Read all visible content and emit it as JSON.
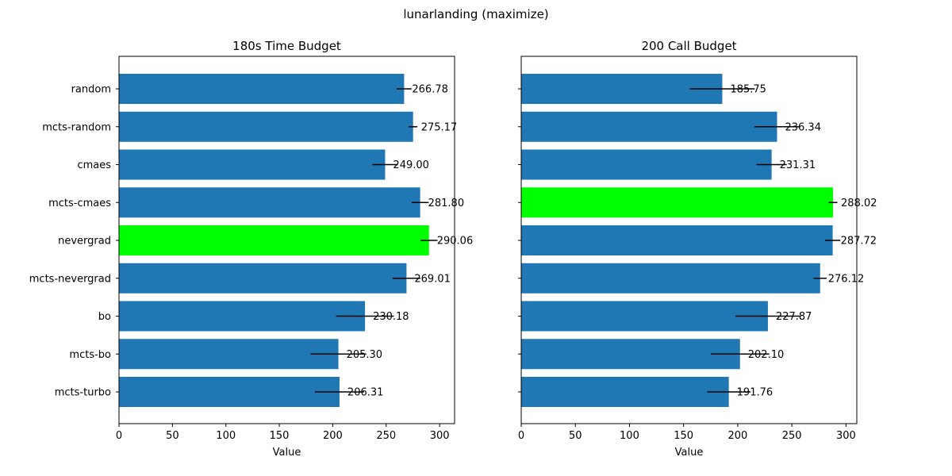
{
  "figure": {
    "suptitle": "lunarlanding (maximize)"
  },
  "chart_data": [
    {
      "type": "bar",
      "orientation": "horizontal",
      "title": "180s Time Budget",
      "xlabel": "Value",
      "ylabel": "",
      "xlim": [
        0,
        314
      ],
      "xticks": [
        0,
        50,
        100,
        150,
        200,
        250,
        300
      ],
      "categories": [
        "random",
        "mcts-random",
        "cmaes",
        "mcts-cmaes",
        "nevergrad",
        "mcts-nevergrad",
        "bo",
        "mcts-bo",
        "mcts-turbo"
      ],
      "values": [
        266.78,
        275.17,
        249.0,
        281.8,
        290.06,
        269.01,
        230.18,
        205.3,
        206.31
      ],
      "labels": [
        "266.78",
        "275.17",
        "249.00",
        "281.80",
        "290.06",
        "269.01",
        "230.18",
        "205.30",
        "206.31"
      ],
      "errors": [
        7,
        4,
        12,
        8,
        8,
        13,
        27,
        26,
        23
      ],
      "highlight_index": 4,
      "bar_color": "#1f77b4",
      "highlight_color": "#00ff00",
      "error_color": "#000000",
      "grid": false
    },
    {
      "type": "bar",
      "orientation": "horizontal",
      "title": "200 Call Budget",
      "xlabel": "Value",
      "ylabel": "",
      "xlim": [
        0,
        310
      ],
      "xticks": [
        0,
        50,
        100,
        150,
        200,
        250,
        300
      ],
      "categories": [
        "random",
        "mcts-random",
        "cmaes",
        "mcts-cmaes",
        "nevergrad",
        "mcts-nevergrad",
        "bo",
        "mcts-bo",
        "mcts-turbo"
      ],
      "values": [
        185.75,
        236.34,
        231.31,
        288.02,
        287.72,
        276.12,
        227.87,
        202.1,
        191.76
      ],
      "labels": [
        "185.75",
        "236.34",
        "231.31",
        "288.02",
        "287.72",
        "276.12",
        "227.87",
        "202.10",
        "191.76"
      ],
      "errors": [
        30,
        21,
        14,
        4,
        7,
        6,
        30,
        27,
        20
      ],
      "highlight_index": 3,
      "bar_color": "#1f77b4",
      "highlight_color": "#00ff00",
      "error_color": "#000000",
      "grid": false
    }
  ]
}
